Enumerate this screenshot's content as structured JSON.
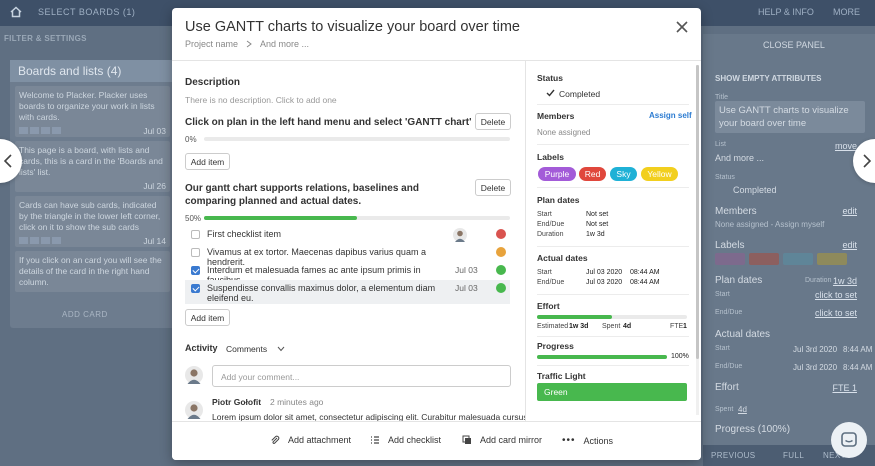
{
  "background": {
    "top_bar": {
      "select_boards": "SELECT BOARDS (1)",
      "help": "HELP & INFO",
      "more": "MORE"
    },
    "filter_settings": "FILTER & SETTINGS",
    "board": {
      "title": "Boards and lists (4)",
      "cards": [
        {
          "text": "Welcome to Placker. Placker uses boards to organize your work in lists with cards.",
          "date": "Jul 03"
        },
        {
          "text": "This page is a board, with lists and cards, this is a card in the 'Boards and lists' list.",
          "date": "Jul 26"
        },
        {
          "text": "Cards can have sub cards, indicated by the triangle in the lower left corner, click on it to show the sub cards",
          "date": "Jul 14"
        },
        {
          "text": "If you click on an card you will see the details of the card in the right hand column.",
          "date": ""
        }
      ],
      "add_card": "ADD CARD"
    },
    "right_panel": {
      "close": "CLOSE PANEL",
      "show_empty": "SHOW EMPTY ATTRIBUTES",
      "title_label": "Title",
      "title_value": "Use GANTT charts to visualize your board over time",
      "list_label": "List",
      "list_value": "And more ...",
      "move": "move",
      "status_label": "Status",
      "status_value": "Completed",
      "members": "Members",
      "edit": "edit",
      "members_none": "None assigned - Assign myself",
      "labels": "Labels",
      "label_names": [
        "Purple",
        "Red",
        "Sky",
        "Yellow"
      ],
      "plan_dates": "Plan dates",
      "duration_label": "Duration",
      "duration_value": "1w 3d",
      "start_label": "Start",
      "end_label": "End/Due",
      "click_to_set": "click to set",
      "actual_dates": "Actual dates",
      "actual_start": "Jul 3rd 2020",
      "actual_start_time": "8:44 AM",
      "actual_end": "Jul 3rd 2020",
      "actual_end_time": "8:44 AM",
      "effort": "Effort",
      "effort_fte": "FTE 1",
      "spent": "Spent",
      "spent_value": "4d",
      "progress": "Progress (100%)"
    },
    "bottom_bar": {
      "previous": "PREVIOUS",
      "full": "FULL",
      "next": "NEXT"
    }
  },
  "modal": {
    "title": "Use GANTT charts to visualize your board over time",
    "breadcrumb": [
      "Project name",
      "And more ..."
    ],
    "description": {
      "heading": "Description",
      "placeholder": "There is no description. Click to add one"
    },
    "checklists": [
      {
        "title": "Click on plan in the left hand menu and select 'GANTT chart'",
        "delete": "Delete",
        "percent": "0%",
        "progress": 0,
        "add_item": "Add item",
        "items": []
      },
      {
        "title": "Our gantt chart supports relations, baselines and comparing planned and actual dates.",
        "delete": "Delete",
        "percent": "50%",
        "progress": 0.5,
        "add_item": "Add item",
        "items": [
          {
            "text": "First checklist item",
            "checked": false,
            "date": "",
            "dot": "#d9534f"
          },
          {
            "text": "Vivamus at ex tortor. Maecenas dapibus varius quam a hendrerit.",
            "checked": false,
            "date": "",
            "dot": "#e8a33c"
          },
          {
            "text": "Interdum et malesuada fames ac ante ipsum primis in faucibus.",
            "checked": true,
            "date": "Jul 03",
            "dot": "#48b84e"
          },
          {
            "text": "Suspendisse convallis maximus dolor, a elementum diam eleifend eu.",
            "checked": true,
            "date": "Jul 03",
            "dot": "#48b84e"
          }
        ]
      }
    ],
    "activity": {
      "label": "Activity",
      "filter": "Comments",
      "comment_placeholder": "Add your comment...",
      "comments": [
        {
          "author": "Piotr Gołofit",
          "time": "2 minutes ago",
          "text": "Lorem ipsum dolor sit amet, consectetur adipiscing elit. Curabitur malesuada cursus"
        }
      ]
    },
    "sidebar": {
      "status_label": "Status",
      "status_value": "Completed",
      "members_label": "Members",
      "assign_self": "Assign self",
      "members_none": "None assigned",
      "labels_label": "Labels",
      "labels": [
        {
          "name": "Purple",
          "color": "#a35bd8"
        },
        {
          "name": "Red",
          "color": "#e0473c"
        },
        {
          "name": "Sky",
          "color": "#1fb1d6"
        },
        {
          "name": "Yellow",
          "color": "#f2cf1e"
        }
      ],
      "plan_dates": {
        "label": "Plan dates",
        "start_label": "Start",
        "start_value": "Not set",
        "end_label": "End/Due",
        "end_value": "Not set",
        "duration_label": "Duration",
        "duration_value": "1w 3d"
      },
      "actual_dates": {
        "label": "Actual dates",
        "start_label": "Start",
        "start_date": "Jul 03 2020",
        "start_time": "08:44 AM",
        "end_label": "End/Due",
        "end_date": "Jul 03 2020",
        "end_time": "08:44 AM"
      },
      "effort": {
        "label": "Effort",
        "estimated_label": "Estimated",
        "estimated_value": "1w 3d",
        "spent_label": "Spent",
        "spent_value": "4d",
        "fte_label": "FTE",
        "fte_value": "1",
        "progress": 0.5
      },
      "progress": {
        "label": "Progress",
        "percent": "100%",
        "value": 1.0
      },
      "traffic_light": {
        "label": "Traffic Light",
        "value": "Green",
        "color": "#48b84e"
      }
    },
    "footer": {
      "add_attachment": "Add attachment",
      "add_checklist": "Add checklist",
      "add_card_mirror": "Add card mirror",
      "actions": "Actions"
    }
  }
}
